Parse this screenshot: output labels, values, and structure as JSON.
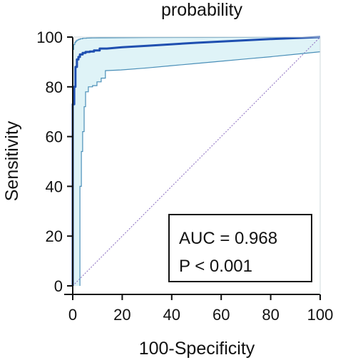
{
  "chart_data": {
    "type": "line",
    "title": "probability",
    "xlabel": "100-Specificity",
    "ylabel": "Sensitivity",
    "xlim": [
      0,
      100
    ],
    "ylim": [
      0,
      100
    ],
    "xticks": [
      0,
      20,
      40,
      60,
      80,
      100
    ],
    "yticks": [
      0,
      20,
      40,
      60,
      80,
      100
    ],
    "grid": false,
    "colors": {
      "roc": "#1f4fb0",
      "ci_line": "#4a8fb8",
      "ci_fill": "#dff3f7",
      "diagonal": "#9a80c8",
      "axis": "#111111"
    },
    "series": [
      {
        "style": "solid",
        "x": [
          0,
          0,
          0.6,
          0.6,
          1.1,
          1.1,
          1.7,
          1.7,
          2.3,
          2.3,
          2.9,
          2.9,
          4.0,
          4.0,
          5.2,
          5.2,
          6.9,
          6.9,
          8.6,
          8.6,
          10.9,
          10.9,
          13.8,
          20,
          30,
          40,
          50,
          60,
          70,
          80,
          90,
          100
        ],
        "y": [
          0,
          73,
          73,
          80,
          80,
          88,
          88,
          91,
          91,
          92,
          92,
          93,
          93,
          93.6,
          93.6,
          94,
          94,
          94.2,
          94.2,
          94.6,
          94.6,
          95.4,
          95.4,
          95.9,
          96.5,
          97.1,
          97.7,
          98.2,
          98.7,
          99.2,
          99.6,
          100
        ]
      }
    ],
    "confidence_band": {
      "upper": {
        "x": [
          0,
          0,
          0.4,
          0.4,
          0.8,
          0.8,
          1.2,
          1.2,
          1.7,
          1.7,
          2.3,
          2.3,
          3.0,
          3.0,
          4.0,
          4.0,
          5.5,
          5.5,
          8,
          15,
          30,
          50,
          70,
          90,
          100
        ],
        "y": [
          0,
          95,
          95,
          97,
          97,
          97.8,
          97.8,
          98.4,
          98.4,
          98.8,
          98.8,
          99.1,
          99.1,
          99.3,
          99.3,
          99.5,
          99.5,
          99.6,
          99.65,
          99.7,
          99.8,
          99.85,
          99.9,
          99.95,
          100
        ]
      },
      "lower": {
        "x": [
          2.9,
          2.9,
          3.5,
          3.5,
          4.0,
          4.0,
          4.6,
          4.6,
          5.2,
          5.2,
          6.3,
          6.3,
          8.0,
          8.0,
          9.8,
          9.8,
          11.5,
          11.5,
          13.2,
          13.2,
          19.5,
          30,
          40,
          50,
          60,
          70,
          80,
          90,
          100
        ],
        "y": [
          0,
          40,
          40,
          54,
          54,
          62,
          62,
          72,
          72,
          78,
          78,
          80,
          80,
          80.5,
          80.5,
          82,
          82,
          83.5,
          83.5,
          86.5,
          86.8,
          87.6,
          88.5,
          89.4,
          90.3,
          91.2,
          92.1,
          93.1,
          94.1
        ]
      }
    },
    "reference_line": {
      "x": [
        0,
        100
      ],
      "y": [
        0,
        100
      ]
    },
    "annotations": [
      "AUC = 0.968",
      "P < 0.001"
    ]
  }
}
